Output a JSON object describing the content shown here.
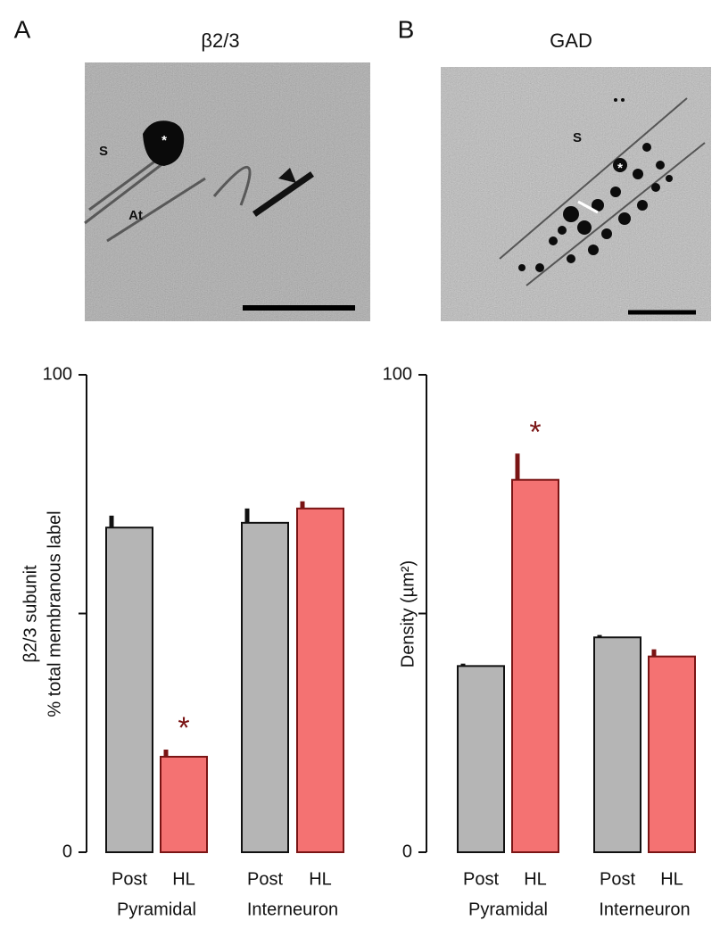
{
  "chart_data": [
    {
      "type": "bar",
      "panel": "A",
      "image_title": "β2/3",
      "image_labels": [
        "S",
        "At",
        "*"
      ],
      "ylabel": [
        "β2/3 subunit",
        "% total membranous label"
      ],
      "categories": [
        "Pyramidal",
        "Interneuron"
      ],
      "series": [
        {
          "name": "Post",
          "color": "#b5b5b5",
          "edgecolor": "#111111",
          "values": [
            68,
            69
          ],
          "errors": [
            2.5,
            3
          ],
          "annotations": [
            null,
            null
          ]
        },
        {
          "name": "HL",
          "color": "#f47272",
          "edgecolor": "#7a1414",
          "values": [
            20,
            72
          ],
          "errors": [
            1.5,
            1.5
          ],
          "annotations": [
            "*",
            null
          ]
        }
      ],
      "ylim": [
        0,
        100
      ],
      "yticks": [
        0,
        100
      ],
      "minor_yticks": [
        50
      ]
    },
    {
      "type": "bar",
      "panel": "B",
      "image_title": "GAD",
      "image_labels": [
        "S",
        "*"
      ],
      "ylabel": [
        "Density (µm²)"
      ],
      "categories": [
        "Pyramidal",
        "Interneuron"
      ],
      "series": [
        {
          "name": "Post",
          "color": "#b5b5b5",
          "edgecolor": "#111111",
          "values": [
            39,
            45
          ],
          "errors": [
            0.5,
            0.5
          ],
          "annotations": [
            null,
            null
          ]
        },
        {
          "name": "HL",
          "color": "#f47272",
          "edgecolor": "#7a1414",
          "values": [
            78,
            41
          ],
          "errors": [
            5.5,
            1.5
          ],
          "annotations": [
            "*",
            null
          ]
        }
      ],
      "ylim": [
        0,
        100
      ],
      "yticks": [
        0,
        100
      ],
      "minor_yticks": [
        50
      ]
    }
  ]
}
